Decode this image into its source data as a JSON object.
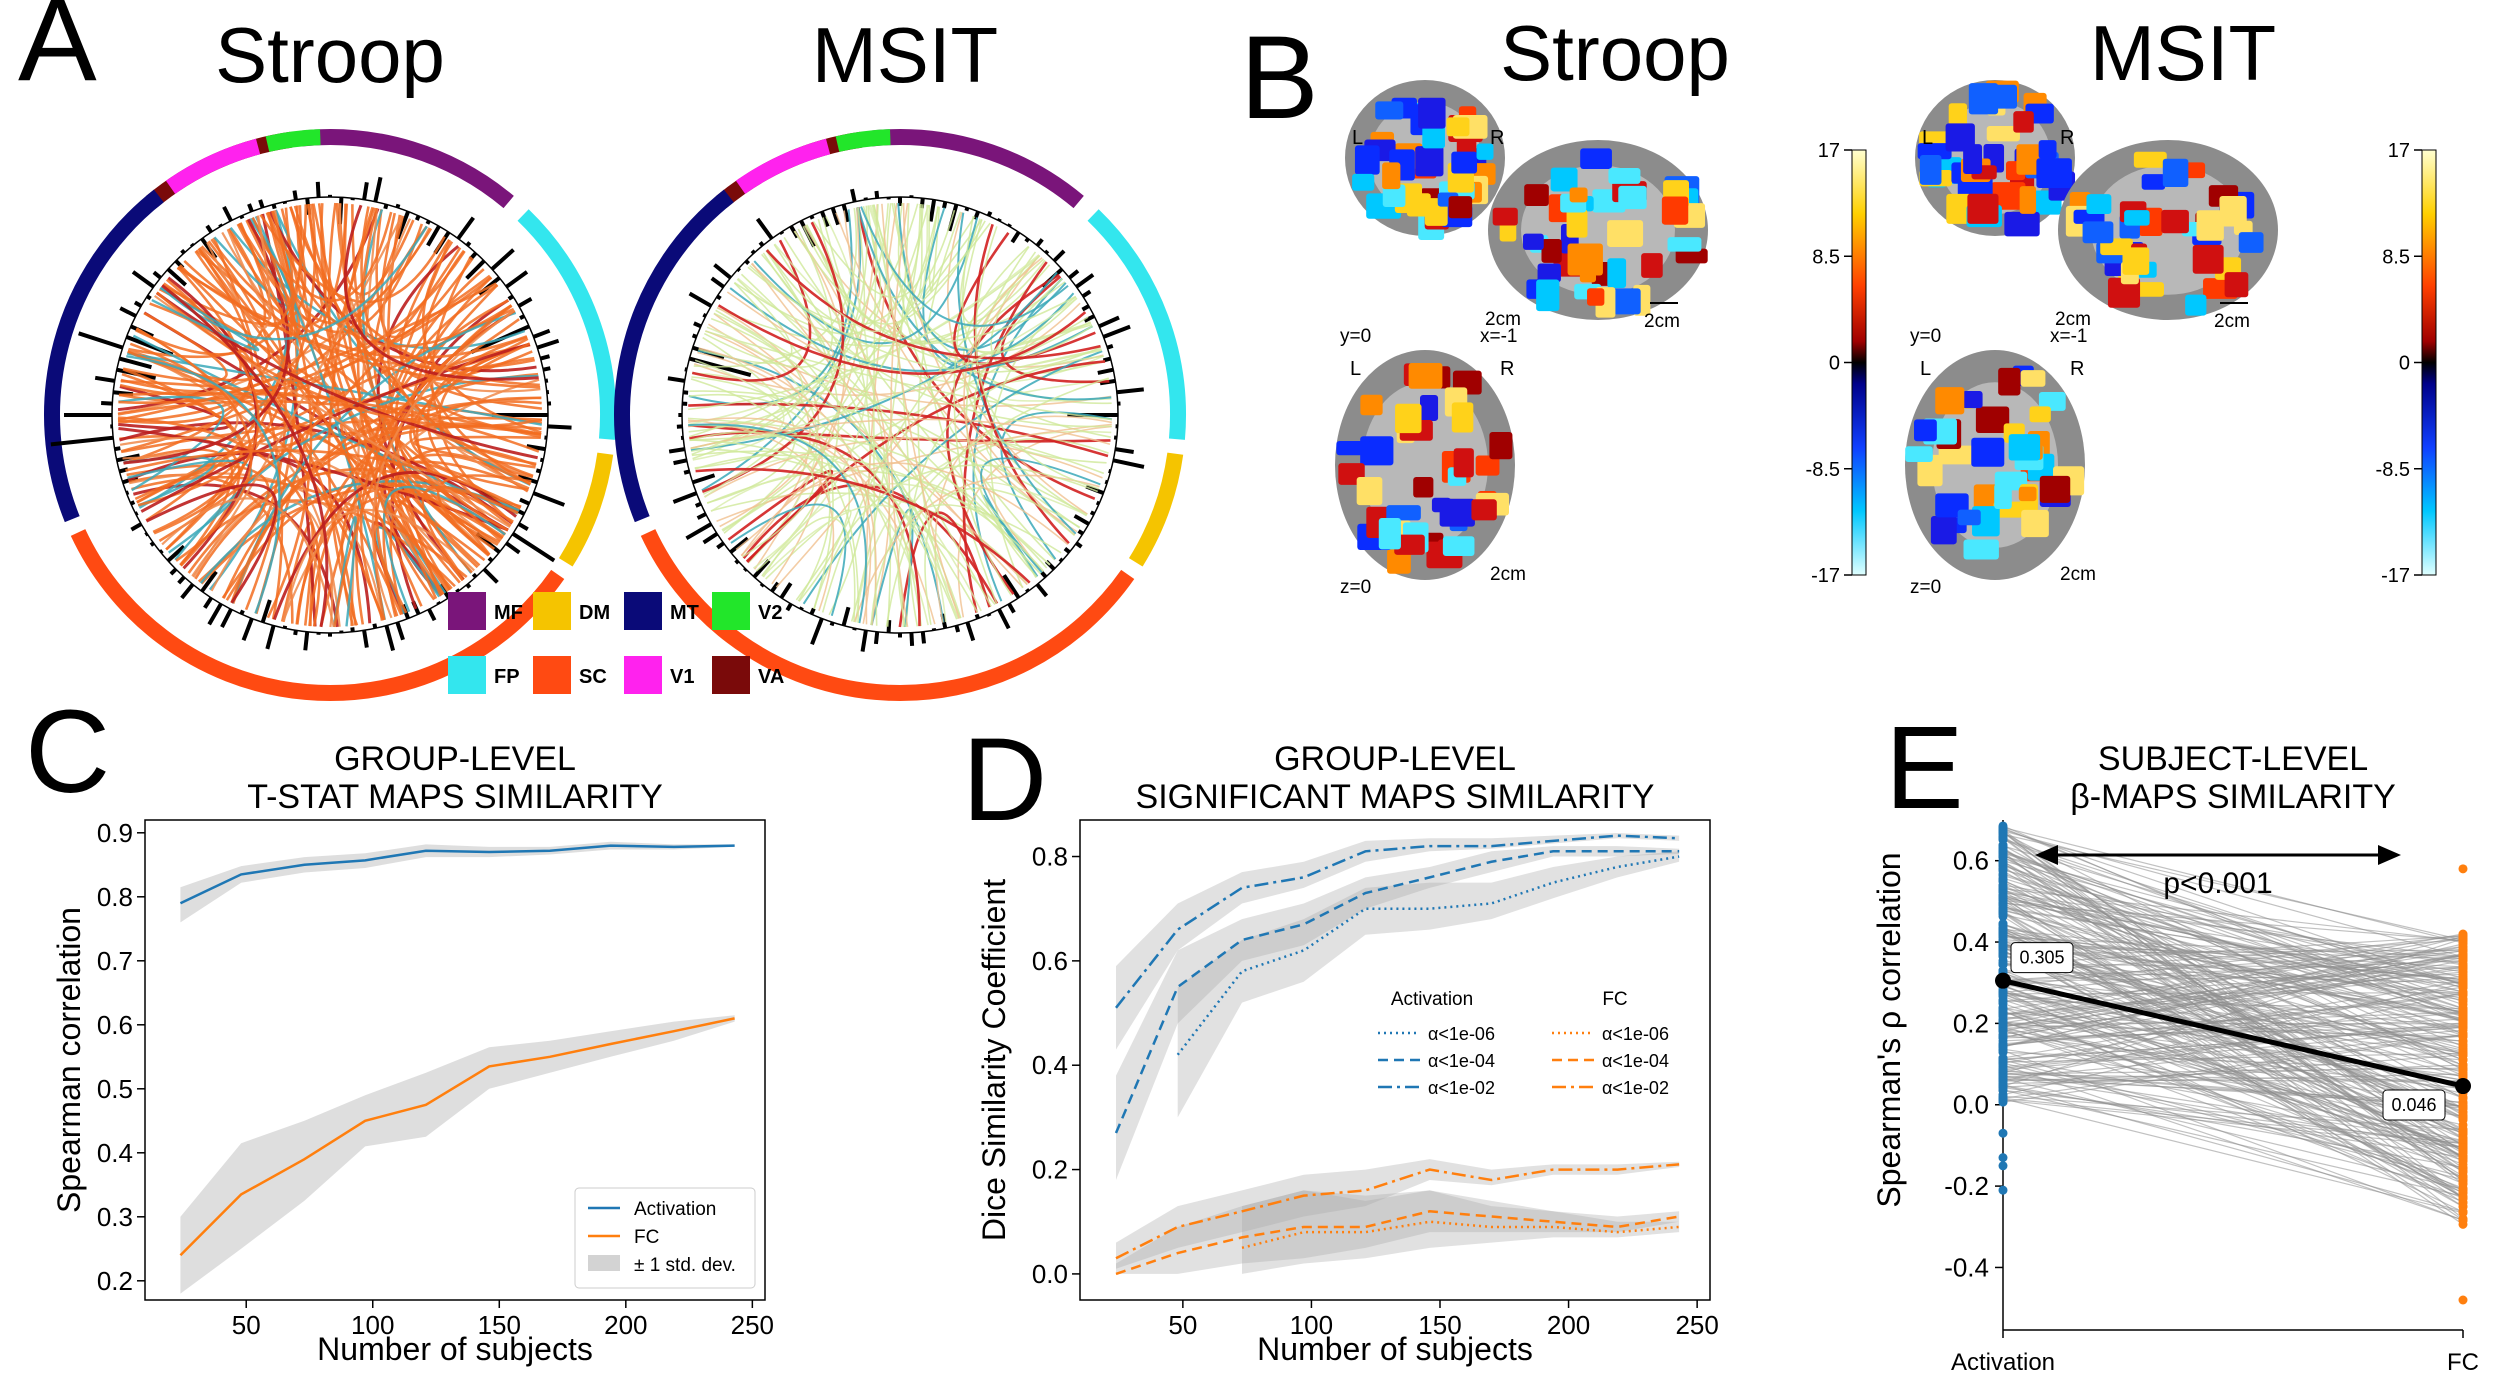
{
  "panels": {
    "A": {
      "letter": "A",
      "left_title": "Stroop",
      "right_title": "MSIT",
      "legend": [
        {
          "code": "MF",
          "color": "#7a157a"
        },
        {
          "code": "FP",
          "color": "#33e6ee"
        },
        {
          "code": "DM",
          "color": "#f5c400"
        },
        {
          "code": "SC",
          "color": "#ff4a12"
        },
        {
          "code": "MT",
          "color": "#0a0a78"
        },
        {
          "code": "V1",
          "color": "#ff22ee"
        },
        {
          "code": "V2",
          "color": "#22e62a"
        },
        {
          "code": "VA",
          "color": "#7a0a0a"
        }
      ]
    },
    "B": {
      "letter": "B",
      "left_title": "Stroop",
      "right_title": "MSIT",
      "slice_labels": {
        "coronal": "y=0",
        "sagittal": "x=-1",
        "axial": "z=0",
        "L": "L",
        "R": "R",
        "scale": "2cm"
      },
      "colorbar_ticks": [
        "17",
        "8.5",
        "0",
        "-8.5",
        "-17"
      ]
    },
    "C": {
      "letter": "C"
    },
    "D": {
      "letter": "D"
    },
    "E": {
      "letter": "E"
    }
  },
  "chart_data": [
    {
      "panel": "C",
      "type": "line",
      "title": "GROUP-LEVEL\nT-STAT MAPS SIMILARITY",
      "title_lines": [
        "GROUP-LEVEL",
        "T-STAT MAPS SIMILARITY"
      ],
      "xlabel": "Number of subjects",
      "ylabel": "Spearman correlation",
      "xlim": [
        10,
        255
      ],
      "ylim": [
        0.17,
        0.92
      ],
      "xticks": [
        50,
        100,
        150,
        200,
        250
      ],
      "yticks": [
        0.2,
        0.3,
        0.4,
        0.5,
        0.6,
        0.7,
        0.8,
        0.9
      ],
      "x": [
        24,
        48,
        73,
        97,
        121,
        146,
        170,
        194,
        219,
        243
      ],
      "series": [
        {
          "name": "Activation",
          "color": "#1f77b4",
          "values": [
            0.79,
            0.835,
            0.85,
            0.857,
            0.872,
            0.87,
            0.872,
            0.88,
            0.878,
            0.88
          ],
          "lower": [
            0.76,
            0.822,
            0.838,
            0.845,
            0.862,
            0.862,
            0.866,
            0.874,
            0.874,
            0.878
          ],
          "upper": [
            0.815,
            0.848,
            0.862,
            0.868,
            0.882,
            0.878,
            0.878,
            0.886,
            0.882,
            0.882
          ]
        },
        {
          "name": "FC",
          "color": "#ff7f0e",
          "values": [
            0.24,
            0.335,
            0.39,
            0.45,
            0.475,
            0.535,
            0.55,
            0.57,
            0.59,
            0.61
          ],
          "lower": [
            0.18,
            0.25,
            0.325,
            0.41,
            0.425,
            0.5,
            0.525,
            0.55,
            0.575,
            0.605
          ],
          "upper": [
            0.3,
            0.415,
            0.45,
            0.49,
            0.525,
            0.565,
            0.575,
            0.59,
            0.605,
            0.615
          ]
        }
      ],
      "legend": {
        "placement": "lower-right",
        "entries": [
          "Activation",
          "FC",
          "± 1 std. dev."
        ]
      }
    },
    {
      "panel": "D",
      "type": "line",
      "title_lines": [
        "GROUP-LEVEL",
        "SIGNIFICANT MAPS SIMILARITY"
      ],
      "xlabel": "Number of subjects",
      "ylabel": "Dice Similarity Coefficient",
      "xlim": [
        10,
        255
      ],
      "ylim": [
        -0.05,
        0.87
      ],
      "xticks": [
        50,
        100,
        150,
        200,
        250
      ],
      "yticks": [
        0.0,
        0.2,
        0.4,
        0.6,
        0.8
      ],
      "legend": {
        "placement": "center-right",
        "group_titles": [
          "Activation",
          "FC"
        ],
        "entries": [
          "α<1e-06",
          "α<1e-04",
          "α<1e-02"
        ]
      },
      "series": [
        {
          "name": "α<1e-06",
          "group": "Activation",
          "color": "#1f77b4",
          "dash": "dot",
          "x": [
            48,
            73,
            97,
            121,
            146,
            170,
            194,
            219,
            243
          ],
          "values": [
            0.42,
            0.58,
            0.62,
            0.7,
            0.7,
            0.71,
            0.75,
            0.78,
            0.8
          ],
          "lower": [
            0.3,
            0.52,
            0.56,
            0.65,
            0.66,
            0.68,
            0.72,
            0.76,
            0.79
          ],
          "upper": [
            0.55,
            0.64,
            0.68,
            0.74,
            0.75,
            0.75,
            0.78,
            0.8,
            0.81
          ]
        },
        {
          "name": "α<1e-04",
          "group": "Activation",
          "color": "#1f77b4",
          "dash": "dash",
          "x": [
            24,
            48,
            73,
            97,
            121,
            146,
            170,
            194,
            219,
            243
          ],
          "values": [
            0.27,
            0.55,
            0.64,
            0.67,
            0.73,
            0.76,
            0.79,
            0.81,
            0.81,
            0.81
          ],
          "lower": [
            0.18,
            0.48,
            0.6,
            0.63,
            0.7,
            0.74,
            0.77,
            0.8,
            0.8,
            0.805
          ],
          "upper": [
            0.38,
            0.62,
            0.68,
            0.71,
            0.76,
            0.78,
            0.81,
            0.82,
            0.82,
            0.815
          ]
        },
        {
          "name": "α<1e-02",
          "group": "Activation",
          "color": "#1f77b4",
          "dash": "dashdot",
          "x": [
            24,
            48,
            73,
            97,
            121,
            146,
            170,
            194,
            219,
            243
          ],
          "values": [
            0.51,
            0.66,
            0.74,
            0.76,
            0.81,
            0.82,
            0.82,
            0.83,
            0.84,
            0.835
          ],
          "lower": [
            0.43,
            0.62,
            0.71,
            0.74,
            0.79,
            0.81,
            0.815,
            0.825,
            0.835,
            0.83
          ],
          "upper": [
            0.59,
            0.71,
            0.77,
            0.79,
            0.83,
            0.835,
            0.835,
            0.84,
            0.845,
            0.84
          ]
        },
        {
          "name": "α<1e-06",
          "group": "FC",
          "color": "#ff7f0e",
          "dash": "dot",
          "x": [
            73,
            97,
            121,
            146,
            170,
            194,
            219,
            243
          ],
          "values": [
            0.05,
            0.08,
            0.08,
            0.1,
            0.09,
            0.09,
            0.08,
            0.09
          ],
          "lower": [
            0.0,
            0.02,
            0.03,
            0.05,
            0.06,
            0.07,
            0.07,
            0.08
          ],
          "upper": [
            0.13,
            0.16,
            0.15,
            0.16,
            0.13,
            0.12,
            0.1,
            0.1
          ]
        },
        {
          "name": "α<1e-04",
          "group": "FC",
          "color": "#ff7f0e",
          "dash": "dash",
          "x": [
            24,
            48,
            73,
            97,
            121,
            146,
            170,
            194,
            219,
            243
          ],
          "values": [
            0.0,
            0.04,
            0.07,
            0.09,
            0.09,
            0.12,
            0.11,
            0.1,
            0.09,
            0.11
          ],
          "lower": [
            0.0,
            0.0,
            0.02,
            0.03,
            0.05,
            0.08,
            0.08,
            0.08,
            0.08,
            0.1
          ],
          "upper": [
            0.02,
            0.09,
            0.13,
            0.16,
            0.14,
            0.16,
            0.14,
            0.12,
            0.11,
            0.12
          ]
        },
        {
          "name": "α<1e-02",
          "group": "FC",
          "color": "#ff7f0e",
          "dash": "dashdot",
          "x": [
            24,
            48,
            73,
            97,
            121,
            146,
            170,
            194,
            219,
            243
          ],
          "values": [
            0.03,
            0.09,
            0.12,
            0.15,
            0.16,
            0.2,
            0.18,
            0.2,
            0.2,
            0.21
          ],
          "lower": [
            0.01,
            0.05,
            0.08,
            0.11,
            0.13,
            0.18,
            0.17,
            0.19,
            0.19,
            0.205
          ],
          "upper": [
            0.06,
            0.13,
            0.16,
            0.19,
            0.2,
            0.22,
            0.2,
            0.21,
            0.21,
            0.215
          ]
        }
      ]
    },
    {
      "panel": "E",
      "type": "scatter",
      "title_lines": [
        "SUBJECT-LEVEL",
        "β-MAPS SIMILARITY"
      ],
      "ylabel": "Spearman's ρ correlation",
      "categories": [
        "Activation",
        "FC"
      ],
      "ylim": [
        -0.48,
        0.7
      ],
      "yticks": [
        -0.4,
        -0.2,
        0.0,
        0.2,
        0.4,
        0.6
      ],
      "annotation": "p<0.001",
      "means": [
        0.305,
        0.046
      ],
      "mean_labels": [
        "0.305",
        "0.046"
      ],
      "series": [
        {
          "name": "Activation",
          "color": "#1f77b4"
        },
        {
          "name": "FC",
          "color": "#ff7f0e"
        }
      ],
      "outliers": {
        "Activation": [
          -0.07,
          -0.13,
          -0.15,
          -0.21
        ],
        "FC": [
          0.58,
          -0.48
        ]
      }
    }
  ]
}
